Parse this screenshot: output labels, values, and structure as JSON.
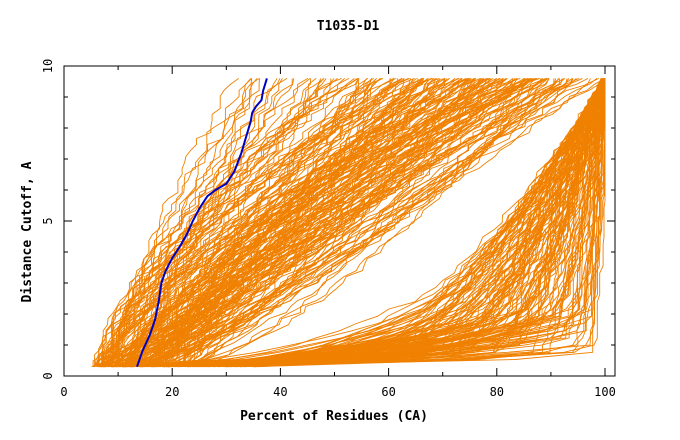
{
  "chart_data": {
    "type": "line",
    "title": "T1035-D1",
    "xlabel": "Percent of Residues (CA)",
    "ylabel": "Distance Cutoff, A",
    "xlim": [
      0,
      100
    ],
    "ylim": [
      0,
      10
    ],
    "x_ticks": [
      "0",
      "20",
      "40",
      "60",
      "80",
      "100"
    ],
    "y_ticks": [
      "0",
      "5",
      "10"
    ],
    "grid": false,
    "legend": "none",
    "background_models_color": "#f08000",
    "highlight_color": "#0000c0",
    "highlight_series": {
      "x": [
        13.5,
        14.5,
        15.8,
        16.8,
        17.5,
        18,
        18.8,
        20,
        21.5,
        22.8,
        23.8,
        25,
        26.5,
        28,
        30,
        31.5,
        32.8,
        33.8,
        34.5,
        34.8,
        35.5,
        36.5,
        36.8,
        37.5
      ],
      "y": [
        0.3,
        0.8,
        1.3,
        1.8,
        2.4,
        3,
        3.4,
        3.8,
        4.2,
        4.6,
        5,
        5.4,
        5.8,
        6,
        6.2,
        6.6,
        7.2,
        7.8,
        8.2,
        8.5,
        8.7,
        8.9,
        9.2,
        9.6
      ]
    }
  }
}
